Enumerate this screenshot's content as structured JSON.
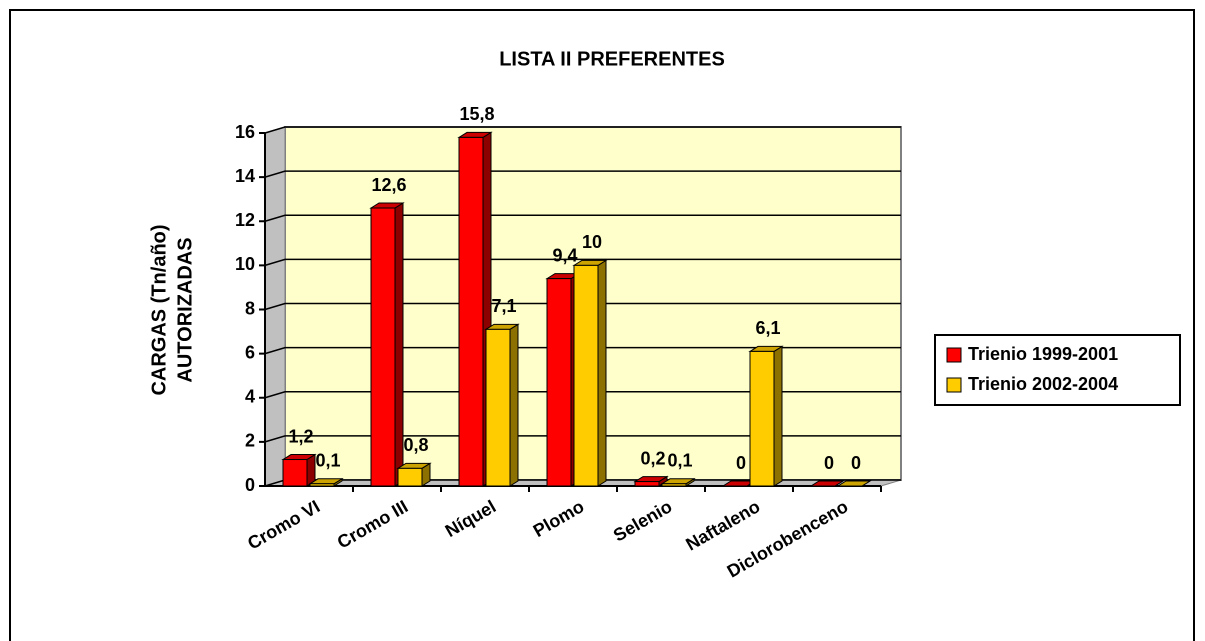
{
  "chart_data": {
    "type": "bar3d",
    "title": "LISTA II PREFERENTES",
    "ylabel": [
      "CARGAS (Tn/año)",
      "AUTORIZADAS"
    ],
    "categories": [
      "Cromo VI",
      "Cromo III",
      "Níquel",
      "Plomo",
      "Selenio",
      "Naftaleno",
      "Diclorobenceno"
    ],
    "series": [
      {
        "name": "Trienio 1999-2001",
        "color": "#ff0000",
        "values": [
          1.2,
          12.6,
          15.8,
          9.4,
          0.2,
          0,
          0
        ],
        "value_labels": [
          "1,2",
          "12,6",
          "15,8",
          "9,4",
          "0,2",
          "0",
          "0"
        ]
      },
      {
        "name": "Trienio 2002-2004",
        "color": "#ffcc00",
        "values": [
          0.1,
          0.8,
          7.1,
          10,
          0.1,
          6.1,
          0
        ],
        "value_labels": [
          "0,1",
          "0,8",
          "7,1",
          "10",
          "0,1",
          "6,1",
          "0"
        ]
      }
    ],
    "ylim": [
      0,
      16
    ],
    "yticks": [
      0,
      2,
      4,
      6,
      8,
      10,
      12,
      14,
      16
    ],
    "grid": true,
    "legend": "right",
    "wall_color": "#ffffcc"
  }
}
